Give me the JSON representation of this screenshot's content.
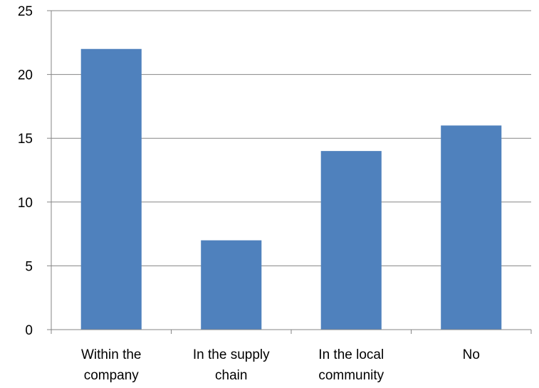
{
  "chart_data": {
    "type": "bar",
    "categories": [
      [
        "Within the",
        "company"
      ],
      [
        "In the supply",
        "chain"
      ],
      [
        "In the local",
        "community"
      ],
      [
        "No"
      ]
    ],
    "values": [
      22,
      7,
      14,
      16
    ],
    "y_ticks": [
      "0",
      "5",
      "10",
      "15",
      "20",
      "25"
    ],
    "ylim": [
      0,
      25
    ],
    "grid": true,
    "legend": "none",
    "colors": {
      "bar": "#4F81BD",
      "grid": "#868686",
      "axis": "#868686"
    }
  }
}
